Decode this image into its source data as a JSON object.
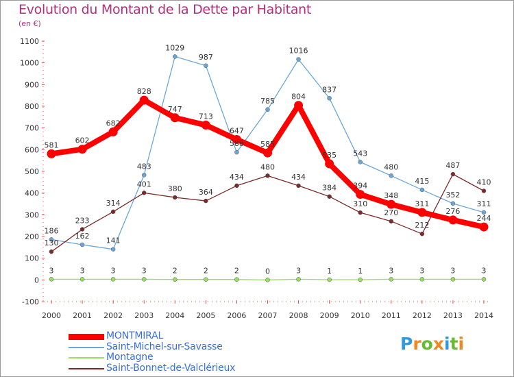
{
  "chart_data": {
    "type": "line",
    "title": "Evolution du Montant de la Dette par Habitant",
    "subtitle": "(en €)",
    "x": [
      "2000",
      "2001",
      "2002",
      "2003",
      "2004",
      "2005",
      "2006",
      "2007",
      "2008",
      "2009",
      "2010",
      "2011",
      "2012",
      "2013",
      "2014"
    ],
    "ylim": [
      -100,
      1100
    ],
    "yticks": [
      -100,
      0,
      100,
      200,
      300,
      400,
      500,
      600,
      700,
      800,
      900,
      1000,
      1100
    ],
    "grid": false,
    "legend_position": "bottom-left",
    "series": [
      {
        "name": "MONTMIRAL",
        "color": "#ff0000",
        "values": [
          581,
          602,
          682,
          828,
          747,
          713,
          647,
          585,
          804,
          535,
          394,
          348,
          311,
          276,
          244
        ]
      },
      {
        "name": "Saint-Michel-sur-Savasse",
        "color": "#6ba6d8",
        "values": [
          186,
          162,
          141,
          483,
          1029,
          987,
          588,
          785,
          1016,
          837,
          543,
          480,
          415,
          352,
          311
        ]
      },
      {
        "name": "Montagne",
        "color": "#99dd66",
        "values": [
          3,
          3,
          3,
          3,
          2,
          2,
          2,
          0,
          3,
          1,
          1,
          3,
          3,
          3,
          3
        ]
      },
      {
        "name": "Saint-Bonnet-de-Valclérieux",
        "color": "#7a2a2a",
        "values": [
          130,
          233,
          314,
          401,
          380,
          364,
          434,
          480,
          434,
          384,
          310,
          270,
          212,
          487,
          410
        ]
      }
    ]
  },
  "legend": {
    "items": [
      {
        "label": "MONTMIRAL",
        "color": "#ff0000"
      },
      {
        "label": "Saint-Michel-sur-Savasse",
        "color": "#6ba6d8"
      },
      {
        "label": "Montagne",
        "color": "#99dd66"
      },
      {
        "label": "Saint-Bonnet-de-Valclérieux",
        "color": "#7a2a2a"
      }
    ]
  },
  "logo": {
    "letters": [
      "P",
      "r",
      "o",
      "x",
      "i",
      "t",
      "i"
    ],
    "colors": [
      "#3399dd",
      "#ee8822",
      "#66bb33",
      "#ee8822",
      "#3399dd",
      "#66bb33",
      "#ee8822"
    ]
  }
}
